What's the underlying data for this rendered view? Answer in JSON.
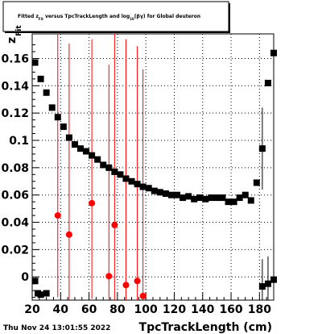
{
  "footer": {
    "timestamp": "Thu Nov 24 13:01:55 2022"
  },
  "chart_data": {
    "type": "scatter",
    "title": {
      "prefix": "Fitted  z",
      "sub1": "Fit",
      "middle": "  versus TpcTrackLength and log",
      "sub2": "10",
      "suffix": "(βγ) for Global deuteron"
    },
    "xlabel": "TpcTrackLength (cm)",
    "ylabel": "z",
    "ylabel_sub": "Fit",
    "xlim": [
      20,
      190
    ],
    "ylim": [
      -0.017,
      0.178
    ],
    "x_ticks": [
      20,
      40,
      60,
      80,
      100,
      120,
      140,
      160,
      180
    ],
    "y_ticks": [
      0,
      0.02,
      0.04,
      0.06,
      0.08,
      0.1,
      0.12,
      0.14,
      0.16
    ],
    "y_tick_labels": [
      "0",
      "0.02",
      "0.04",
      "0.06",
      "0.08",
      "0.1",
      "0.12",
      "0.14",
      "0.16"
    ],
    "grid": true,
    "series": [
      {
        "marker": "square",
        "color": "#000000",
        "points": [
          {
            "x": 22,
            "y": 0.157
          },
          {
            "x": 26,
            "y": 0.145
          },
          {
            "x": 30,
            "y": 0.135
          },
          {
            "x": 34,
            "y": 0.124
          },
          {
            "x": 38,
            "y": 0.117
          },
          {
            "x": 42,
            "y": 0.11
          },
          {
            "x": 46,
            "y": 0.102
          },
          {
            "x": 50,
            "y": 0.097
          },
          {
            "x": 54,
            "y": 0.094
          },
          {
            "x": 58,
            "y": 0.092
          },
          {
            "x": 62,
            "y": 0.089
          },
          {
            "x": 66,
            "y": 0.086
          },
          {
            "x": 70,
            "y": 0.082
          },
          {
            "x": 74,
            "y": 0.08
          },
          {
            "x": 78,
            "y": 0.077
          },
          {
            "x": 82,
            "y": 0.075
          },
          {
            "x": 86,
            "y": 0.072
          },
          {
            "x": 90,
            "y": 0.07
          },
          {
            "x": 94,
            "y": 0.068
          },
          {
            "x": 98,
            "y": 0.066
          },
          {
            "x": 102,
            "y": 0.065
          },
          {
            "x": 106,
            "y": 0.063
          },
          {
            "x": 110,
            "y": 0.062
          },
          {
            "x": 114,
            "y": 0.061
          },
          {
            "x": 118,
            "y": 0.06
          },
          {
            "x": 122,
            "y": 0.06
          },
          {
            "x": 126,
            "y": 0.058
          },
          {
            "x": 130,
            "y": 0.059
          },
          {
            "x": 134,
            "y": 0.057
          },
          {
            "x": 138,
            "y": 0.058
          },
          {
            "x": 142,
            "y": 0.057
          },
          {
            "x": 146,
            "y": 0.058
          },
          {
            "x": 150,
            "y": 0.058
          },
          {
            "x": 154,
            "y": 0.058
          },
          {
            "x": 158,
            "y": 0.055
          },
          {
            "x": 162,
            "y": 0.055
          },
          {
            "x": 166,
            "y": 0.058
          },
          {
            "x": 170,
            "y": 0.06
          },
          {
            "x": 174,
            "y": 0.056
          },
          {
            "x": 178,
            "y": 0.069
          },
          {
            "x": 182,
            "y": 0.094,
            "err": 0.03
          },
          {
            "x": 186,
            "y": 0.142
          },
          {
            "x": 190,
            "y": 0.164,
            "err": 0.17
          }
        ]
      },
      {
        "marker": "square",
        "color": "#000000",
        "points": [
          {
            "x": 22,
            "y": -0.003
          },
          {
            "x": 24,
            "y": -0.012
          },
          {
            "x": 26,
            "y": -0.013
          },
          {
            "x": 30,
            "y": -0.012
          },
          {
            "x": 182,
            "y": -0.007,
            "err": 0.02
          },
          {
            "x": 186,
            "y": -0.005,
            "err": 0.02
          },
          {
            "x": 190,
            "y": -0.002,
            "err": 0.03
          }
        ]
      },
      {
        "marker": "circle",
        "color": "#ff0000",
        "points": [
          {
            "x": 38,
            "y": 0.045,
            "err_lo": 0.06,
            "err_hi": 0.14
          },
          {
            "x": 46,
            "y": 0.031,
            "err_lo": 0.05,
            "err_hi": 0.14
          },
          {
            "x": 62,
            "y": 0.054,
            "err_lo": 0.07,
            "err_hi": 0.12
          },
          {
            "x": 74,
            "y": 0.0005,
            "err_lo": 0.02,
            "err_hi": 0.155
          },
          {
            "x": 78,
            "y": 0.038,
            "err_lo": 0.06,
            "err_hi": 0.14
          },
          {
            "x": 86,
            "y": -0.006,
            "err_lo": 0.015,
            "err_hi": 0.18
          },
          {
            "x": 94,
            "y": -0.003,
            "err_lo": 0.015,
            "err_hi": 0.172
          },
          {
            "x": 98,
            "y": -0.014,
            "err_lo": 0.005,
            "err_hi": 0.166
          }
        ]
      }
    ]
  }
}
